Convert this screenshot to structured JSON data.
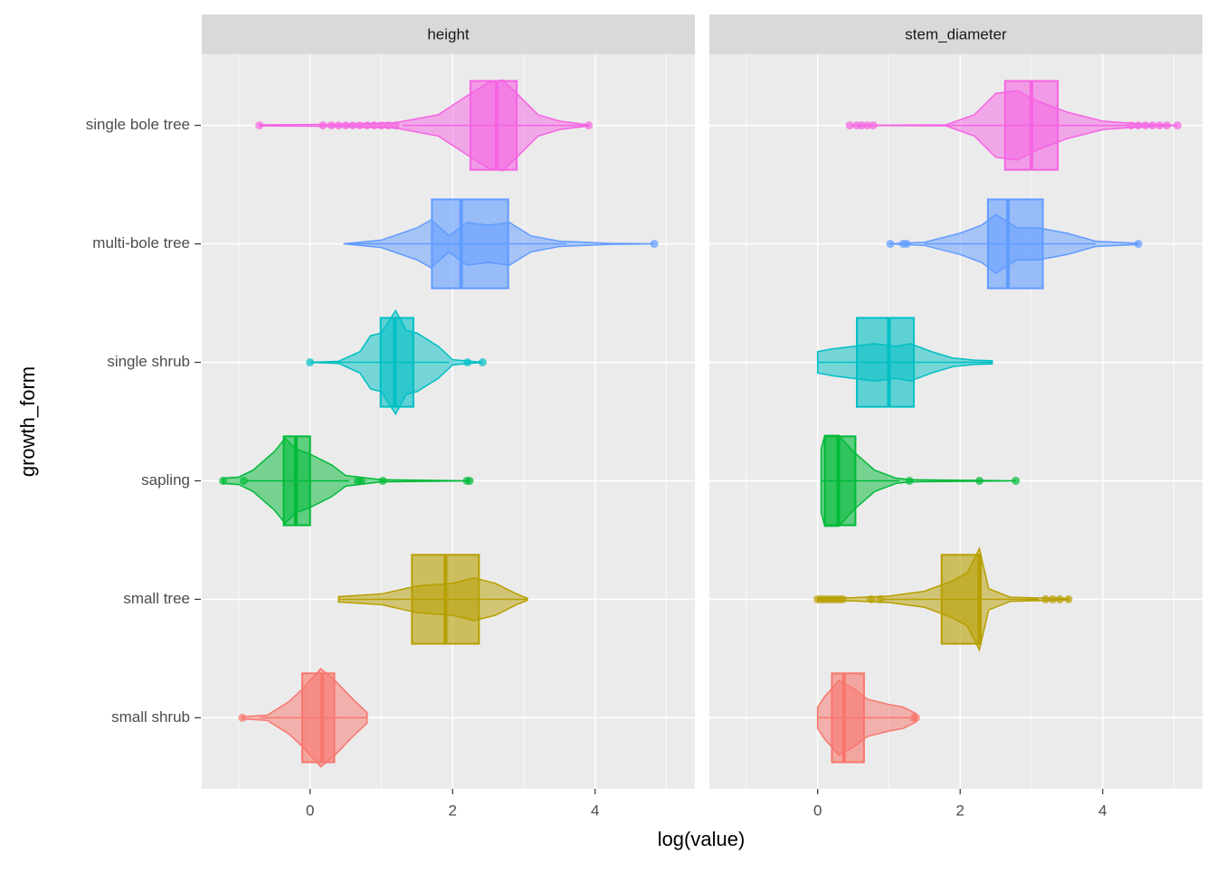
{
  "chart_data": {
    "type": "violin",
    "x_label": "log(value)",
    "y_label": "growth_form",
    "categories": [
      "small shrub",
      "small tree",
      "sapling",
      "single shrub",
      "multi-bole tree",
      "single bole tree"
    ],
    "colors": [
      "#F8766D",
      "#B79F00",
      "#00BA38",
      "#00BFC4",
      "#619CFF",
      "#F564E3"
    ],
    "xlim": [
      -1.52,
      5.4
    ],
    "xticks": [
      0,
      2,
      4
    ],
    "minor_xticks": [
      -1,
      1,
      3,
      5
    ],
    "grid": true,
    "facets": [
      {
        "title": "height",
        "groups": [
          {
            "box": [
              -0.11,
              0.17,
              0.34
            ],
            "whisker": [
              -0.7,
              0.8
            ],
            "outliers": [
              -0.95
            ],
            "violin": {
              "x": [
                -0.95,
                -0.6,
                -0.3,
                -0.1,
                0.15,
                0.35,
                0.6,
                0.8
              ],
              "width": [
                0.02,
                0.05,
                0.3,
                0.55,
                0.92,
                0.7,
                0.35,
                0.1
              ]
            }
          },
          {
            "box": [
              1.43,
              1.9,
              2.37
            ],
            "whisker": [
              0.4,
              3.05
            ],
            "outliers": [],
            "violin": {
              "x": [
                0.4,
                1.0,
                1.5,
                2.0,
                2.3,
                2.6,
                2.9,
                3.05
              ],
              "width": [
                0.05,
                0.1,
                0.25,
                0.3,
                0.4,
                0.3,
                0.1,
                0.02
              ]
            }
          },
          {
            "box": [
              -0.37,
              -0.2,
              0
            ],
            "whisker": [
              -0.9,
              0.55
            ],
            "outliers": [
              -1.22,
              -0.93,
              0.67,
              0.72,
              1.02,
              2.2,
              2.24
            ],
            "violin": {
              "x": [
                -1.22,
                -1.0,
                -0.8,
                -0.5,
                -0.35,
                -0.2,
                0,
                0.3,
                0.5,
                1.0,
                2.24
              ],
              "width": [
                0.05,
                0.07,
                0.2,
                0.55,
                0.8,
                0.6,
                0.5,
                0.3,
                0.1,
                0.02,
                0
              ]
            }
          },
          {
            "box": [
              0.99,
              1.19,
              1.45
            ],
            "whisker": [
              0.2,
              1.95
            ],
            "outliers": [
              0,
              2.21,
              2.42
            ],
            "violin": {
              "x": [
                0,
                0.4,
                0.7,
                0.85,
                1.0,
                1.2,
                1.35,
                1.5,
                1.8,
                2.0,
                2.42
              ],
              "width": [
                0,
                0.02,
                0.2,
                0.5,
                0.55,
                0.97,
                0.6,
                0.55,
                0.3,
                0.05,
                0
              ]
            }
          },
          {
            "box": [
              1.71,
              2.12,
              2.78
            ],
            "whisker": [
              0.47,
              3.6
            ],
            "outliers": [
              4.83
            ],
            "violin": {
              "x": [
                0.47,
                1.0,
                1.5,
                1.7,
                1.95,
                2.2,
                2.5,
                2.8,
                3.1,
                3.5,
                4.2,
                4.83
              ],
              "width": [
                0,
                0.07,
                0.3,
                0.45,
                0.15,
                0.4,
                0.35,
                0.4,
                0.15,
                0.05,
                0.01,
                0
              ]
            }
          },
          {
            "box": [
              2.25,
              2.62,
              2.9
            ],
            "whisker": [
              1.3,
              3.85
            ],
            "outliers": [
              -0.71,
              0.18,
              0.3,
              0.4,
              0.5,
              0.6,
              0.7,
              0.8,
              0.9,
              1.0,
              1.1,
              1.2,
              3.91
            ],
            "violin": {
              "x": [
                -0.71,
                0.5,
                1.2,
                1.8,
                2.2,
                2.5,
                2.7,
                2.9,
                3.2,
                3.5,
                3.91
              ],
              "width": [
                0.01,
                0.02,
                0.05,
                0.2,
                0.55,
                0.8,
                0.85,
                0.6,
                0.2,
                0.08,
                0.01
              ]
            }
          }
        ]
      },
      {
        "title": "stem_diameter",
        "groups": [
          {
            "box": [
              0.2,
              0.37,
              0.65
            ],
            "whisker": [
              0,
              1.3
            ],
            "outliers": [
              1.35,
              1.38
            ],
            "violin": {
              "x": [
                0,
                0.1,
                0.3,
                0.5,
                0.7,
                1.0,
                1.2,
                1.38
              ],
              "width": [
                0.2,
                0.4,
                0.7,
                0.55,
                0.35,
                0.25,
                0.2,
                0.08
              ]
            }
          },
          {
            "box": [
              1.74,
              2.27,
              2.29
            ],
            "whisker": [
              0.9,
              3.1
            ],
            "outliers": [
              0,
              0.05,
              0.1,
              0.15,
              0.2,
              0.25,
              0.3,
              0.35,
              0.75,
              0.88,
              3.2,
              3.3,
              3.4,
              3.52
            ],
            "violin": {
              "x": [
                0,
                0.5,
                1.0,
                1.5,
                1.9,
                2.1,
                2.27,
                2.4,
                2.7,
                3.52
              ],
              "width": [
                0.02,
                0.03,
                0.06,
                0.15,
                0.35,
                0.5,
                0.95,
                0.2,
                0.04,
                0.01
              ]
            }
          },
          {
            "box": [
              0.1,
              0.29,
              0.53
            ],
            "whisker": [
              0.05,
              1.15
            ],
            "outliers": [
              1.29,
              2.27,
              2.78
            ],
            "violin": {
              "x": [
                0.05,
                0.1,
                0.3,
                0.5,
                0.8,
                1.1,
                1.3,
                2.78
              ],
              "width": [
                0.6,
                0.85,
                0.85,
                0.55,
                0.2,
                0.05,
                0.02,
                0
              ]
            }
          },
          {
            "box": [
              0.55,
              1.0,
              1.35
            ],
            "whisker": [
              0,
              2.45
            ],
            "outliers": [],
            "violin": {
              "x": [
                0,
                0.2,
                0.5,
                0.8,
                1.1,
                1.3,
                1.6,
                1.9,
                2.2,
                2.45
              ],
              "width": [
                0.2,
                0.25,
                0.3,
                0.35,
                0.3,
                0.35,
                0.2,
                0.08,
                0.04,
                0.03
              ]
            }
          },
          {
            "box": [
              2.39,
              2.67,
              3.16
            ],
            "whisker": [
              1.5,
              3.9
            ],
            "outliers": [
              1.02,
              1.2,
              1.25,
              4.5
            ],
            "violin": {
              "x": [
                1.0,
                1.5,
                2.0,
                2.3,
                2.5,
                2.8,
                3.1,
                3.5,
                3.9,
                4.5
              ],
              "width": [
                0,
                0.03,
                0.2,
                0.35,
                0.55,
                0.3,
                0.3,
                0.2,
                0.05,
                0.01
              ]
            }
          },
          {
            "box": [
              2.63,
              3.0,
              3.37
            ],
            "whisker": [
              1.8,
              4.35
            ],
            "outliers": [
              0.45,
              0.55,
              0.62,
              0.7,
              0.78,
              4.4,
              4.5,
              4.6,
              4.7,
              4.8,
              4.9,
              5.05
            ],
            "violin": {
              "x": [
                0.45,
                1.8,
                2.2,
                2.5,
                2.8,
                3.1,
                3.5,
                4.0,
                4.5,
                5.05
              ],
              "width": [
                0,
                0.01,
                0.2,
                0.6,
                0.65,
                0.45,
                0.25,
                0.08,
                0.03,
                0
              ]
            }
          }
        ]
      }
    ]
  }
}
